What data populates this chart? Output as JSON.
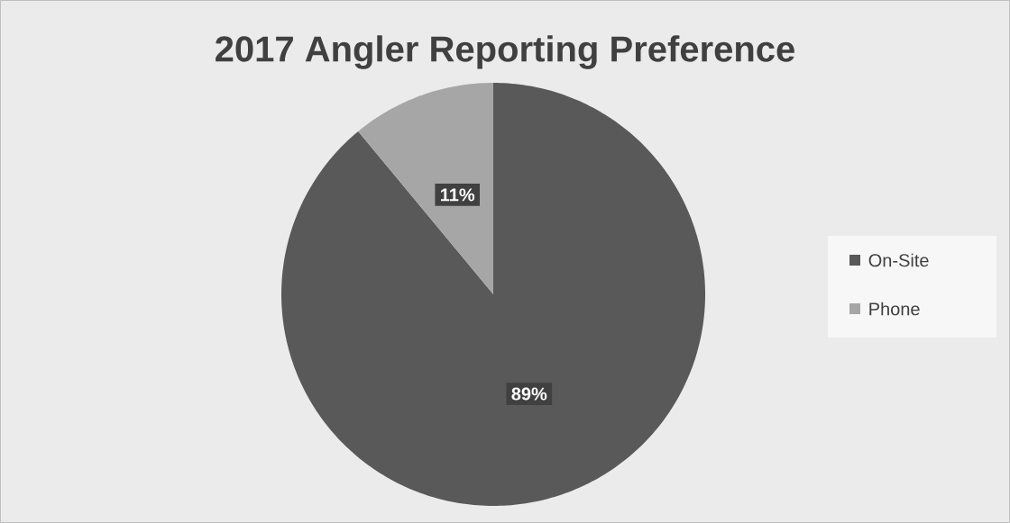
{
  "chart_data": {
    "type": "pie",
    "title": "2017 Angler Reporting Preference",
    "categories": [
      "On-Site",
      "Phone"
    ],
    "values": [
      89,
      11
    ],
    "colors": [
      "#595959",
      "#a6a6a6"
    ],
    "value_labels": [
      "89%",
      "11%"
    ],
    "legend": "right"
  }
}
